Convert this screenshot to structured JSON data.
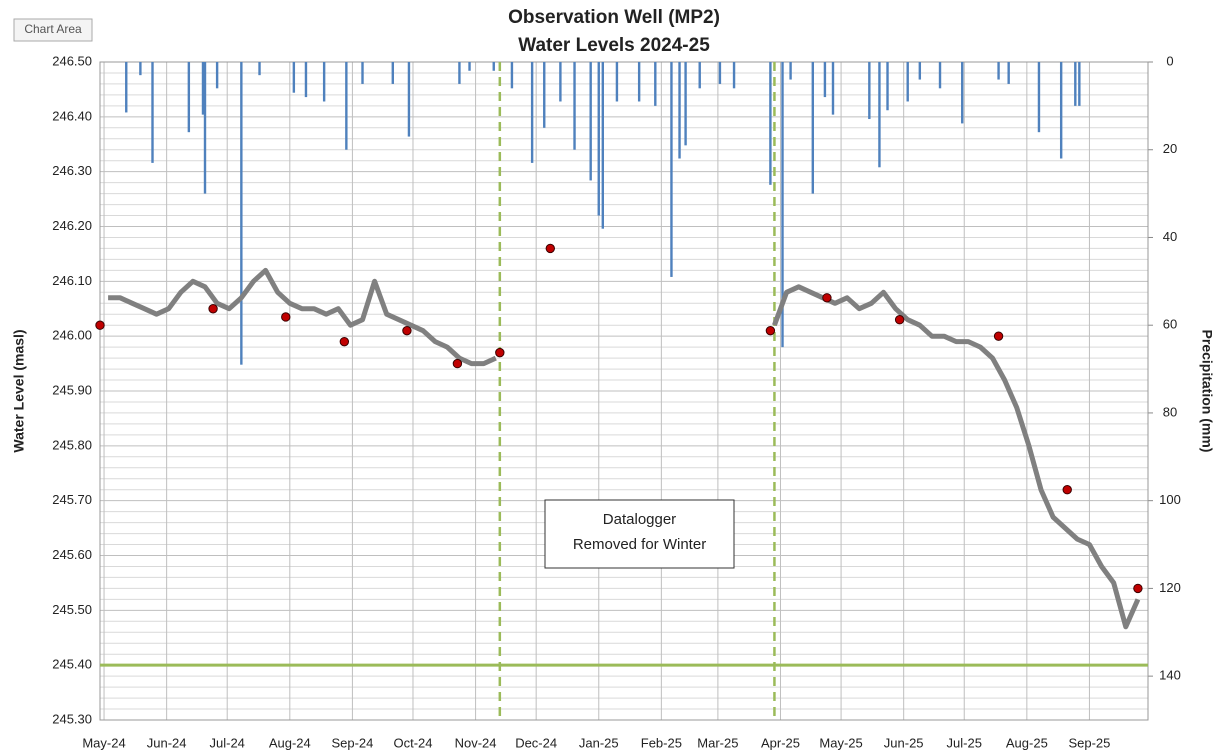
{
  "chart_data": {
    "type": "combo",
    "title": [
      "Observation Well (MP2)",
      "Water Levels 2024-25"
    ],
    "tooltip": "Chart Area",
    "ylabel": "Water Level (masl)",
    "y2label": "Precipitation (mm)",
    "annotation": [
      "Datalogger",
      "Removed for Winter"
    ],
    "xlim": [
      -2,
      517
    ],
    "xticks": [
      {
        "value": 0,
        "label": "May-24"
      },
      {
        "value": 31,
        "label": "Jun-24"
      },
      {
        "value": 61,
        "label": "Jul-24"
      },
      {
        "value": 92,
        "label": "Aug-24"
      },
      {
        "value": 123,
        "label": "Sep-24"
      },
      {
        "value": 153,
        "label": "Oct-24"
      },
      {
        "value": 184,
        "label": "Nov-24"
      },
      {
        "value": 214,
        "label": "Dec-24"
      },
      {
        "value": 245,
        "label": "Jan-25"
      },
      {
        "value": 276,
        "label": "Feb-25"
      },
      {
        "value": 304,
        "label": "Mar-25"
      },
      {
        "value": 335,
        "label": "Apr-25"
      },
      {
        "value": 365,
        "label": "May-25"
      },
      {
        "value": 396,
        "label": "Jun-25"
      },
      {
        "value": 426,
        "label": "Jul-25"
      },
      {
        "value": 457,
        "label": "Aug-25"
      },
      {
        "value": 488,
        "label": "Sep-25"
      }
    ],
    "ylim": [
      245.3,
      246.5
    ],
    "yticks": [
      {
        "value": 245.3,
        "label": "245.30"
      },
      {
        "value": 245.4,
        "label": "245.40"
      },
      {
        "value": 245.5,
        "label": "245.50"
      },
      {
        "value": 245.6,
        "label": "245.60"
      },
      {
        "value": 245.7,
        "label": "245.70"
      },
      {
        "value": 245.8,
        "label": "245.80"
      },
      {
        "value": 245.9,
        "label": "245.90"
      },
      {
        "value": 246.0,
        "label": "246.00"
      },
      {
        "value": 246.1,
        "label": "246.10"
      },
      {
        "value": 246.2,
        "label": "246.20"
      },
      {
        "value": 246.3,
        "label": "246.30"
      },
      {
        "value": 246.4,
        "label": "246.40"
      },
      {
        "value": 246.5,
        "label": "246.50"
      }
    ],
    "yminorticks": [
      245.32,
      245.34,
      245.36,
      245.38,
      245.42,
      245.44,
      245.46,
      245.48,
      245.52,
      245.54,
      245.56,
      245.58,
      245.62,
      245.64,
      245.66,
      245.68,
      245.72,
      245.74,
      245.76,
      245.78,
      245.82,
      245.84,
      245.86,
      245.88,
      245.92,
      245.94,
      245.96,
      245.98,
      246.02,
      246.04,
      246.06,
      246.08,
      246.12,
      246.14,
      246.16,
      246.18,
      246.22,
      246.24,
      246.26,
      246.28,
      246.32,
      246.34,
      246.36,
      246.38,
      246.42,
      246.44,
      246.46,
      246.48
    ],
    "y2lim": [
      150,
      0
    ],
    "y2ticks": [
      0,
      20,
      40,
      60,
      80,
      100,
      120,
      140
    ],
    "grid": true,
    "reference_line": {
      "value": 245.4,
      "color": "#9bbb59"
    },
    "vertical_lines": {
      "x": [
        196,
        332
      ],
      "color": "#9bbb59"
    },
    "series": [
      {
        "kind": "bar",
        "axis": "y2",
        "color": "#4f81bd",
        "x": [
          11,
          18,
          24,
          42,
          49,
          50,
          56,
          68,
          77,
          94,
          100,
          109,
          120,
          128,
          143,
          151,
          176,
          181,
          193,
          202,
          212,
          218,
          226,
          233,
          241,
          245,
          247,
          254,
          265,
          273,
          281,
          285,
          288,
          295,
          305,
          312,
          330,
          336,
          340,
          351,
          357,
          361,
          379,
          384,
          388,
          398,
          404,
          414,
          425,
          443,
          448,
          463,
          474,
          481,
          483
        ],
        "values": [
          11.5,
          3,
          23,
          16,
          12,
          30,
          6,
          69,
          3,
          7,
          8,
          9,
          20,
          5,
          5,
          17,
          5,
          2,
          2,
          6,
          23,
          15,
          9,
          20,
          27,
          35,
          38,
          9,
          9,
          10,
          49,
          22,
          19,
          6,
          5,
          6,
          28,
          65,
          4,
          30,
          8,
          12,
          13,
          24,
          11,
          9,
          4,
          6,
          14,
          4,
          5,
          16,
          22,
          10,
          10
        ]
      },
      {
        "kind": "line",
        "color": "#808080",
        "x": [
          2,
          8,
          14,
          20,
          26,
          32,
          38,
          44,
          50,
          56,
          62,
          68,
          74,
          80,
          86,
          92,
          98,
          104,
          110,
          116,
          122,
          128,
          134,
          140,
          146,
          152,
          158,
          164,
          170,
          176,
          182,
          188,
          194,
          260,
          332,
          338,
          344,
          350,
          356,
          362,
          368,
          374,
          380,
          386,
          392,
          398,
          404,
          410,
          416,
          422,
          428,
          434,
          440,
          446,
          452,
          458,
          464,
          470,
          476,
          482,
          488,
          494,
          500,
          506,
          512
        ],
        "values": [
          246.07,
          246.07,
          246.06,
          246.05,
          246.04,
          246.05,
          246.08,
          246.1,
          246.09,
          246.06,
          246.05,
          246.07,
          246.1,
          246.12,
          246.08,
          246.06,
          246.05,
          246.05,
          246.04,
          246.05,
          246.02,
          246.03,
          246.1,
          246.04,
          246.03,
          246.02,
          246.01,
          245.99,
          245.98,
          245.96,
          245.95,
          245.95,
          245.96,
          null,
          246.02,
          246.08,
          246.09,
          246.08,
          246.07,
          246.06,
          246.07,
          246.05,
          246.06,
          246.08,
          246.05,
          246.03,
          246.02,
          246.0,
          246.0,
          245.99,
          245.99,
          245.98,
          245.96,
          245.92,
          245.87,
          245.8,
          245.72,
          245.67,
          245.65,
          245.63,
          245.62,
          245.58,
          245.55,
          245.47,
          245.52
        ]
      },
      {
        "kind": "scatter",
        "color": "#c00000",
        "x": [
          -2,
          54,
          90,
          119,
          150,
          175,
          196,
          221,
          330,
          358,
          394,
          443,
          477,
          512
        ],
        "values": [
          246.02,
          246.05,
          246.035,
          245.99,
          246.01,
          245.95,
          245.97,
          246.16,
          246.01,
          246.07,
          246.03,
          246.0,
          245.72,
          245.54
        ]
      }
    ]
  }
}
